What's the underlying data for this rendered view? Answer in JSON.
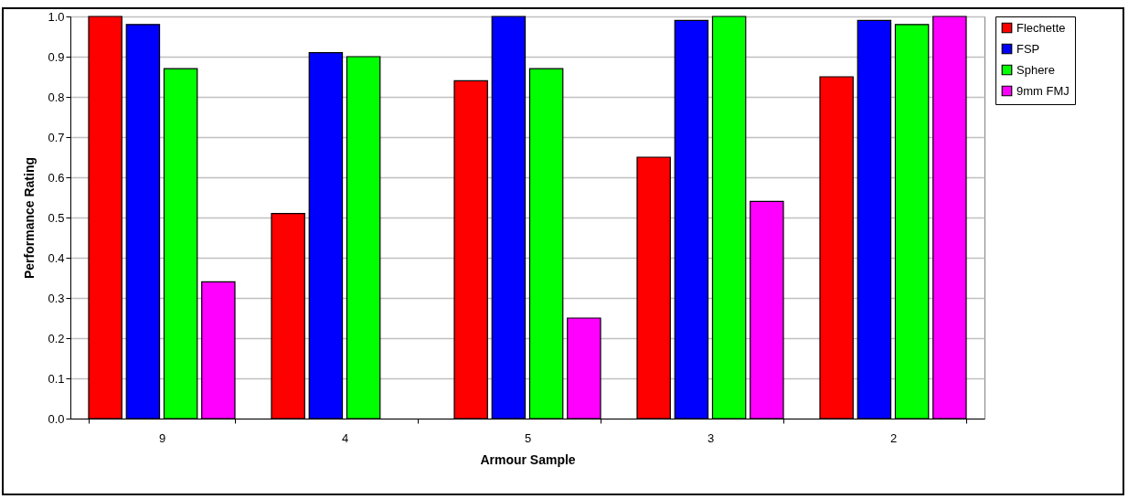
{
  "chart_data": {
    "type": "bar",
    "xlabel": "Armour Sample",
    "ylabel": "Performance Rating",
    "categories": [
      "9",
      "4",
      "5",
      "3",
      "2"
    ],
    "series": [
      {
        "name": "Flechette",
        "color": "#ff0000",
        "values": [
          1.0,
          0.51,
          0.84,
          0.65,
          0.85
        ]
      },
      {
        "name": "FSP",
        "color": "#0000ff",
        "values": [
          0.98,
          0.91,
          1.0,
          0.99,
          0.99
        ]
      },
      {
        "name": "Sphere",
        "color": "#00ff00",
        "values": [
          0.87,
          0.9,
          0.87,
          1.0,
          0.98
        ]
      },
      {
        "name": "9mm FMJ",
        "color": "#ff00ff",
        "values": [
          0.34,
          null,
          0.25,
          0.54,
          1.0
        ]
      }
    ],
    "ylim": [
      0,
      1
    ],
    "yticks": [
      {
        "value": 0,
        "label": "0.0"
      },
      {
        "value": 0.1,
        "label": "0.1"
      },
      {
        "value": 0.2,
        "label": "0.2"
      },
      {
        "value": 0.3,
        "label": "0.3"
      },
      {
        "value": 0.4,
        "label": "0.4"
      },
      {
        "value": 0.5,
        "label": "0.5"
      },
      {
        "value": 0.6,
        "label": "0.6"
      },
      {
        "value": 0.7,
        "label": "0.7"
      },
      {
        "value": 0.8,
        "label": "0.8"
      },
      {
        "value": 0.9,
        "label": "0.9"
      },
      {
        "value": 1,
        "label": "1.0"
      }
    ],
    "grid": "y",
    "legend": "right"
  }
}
